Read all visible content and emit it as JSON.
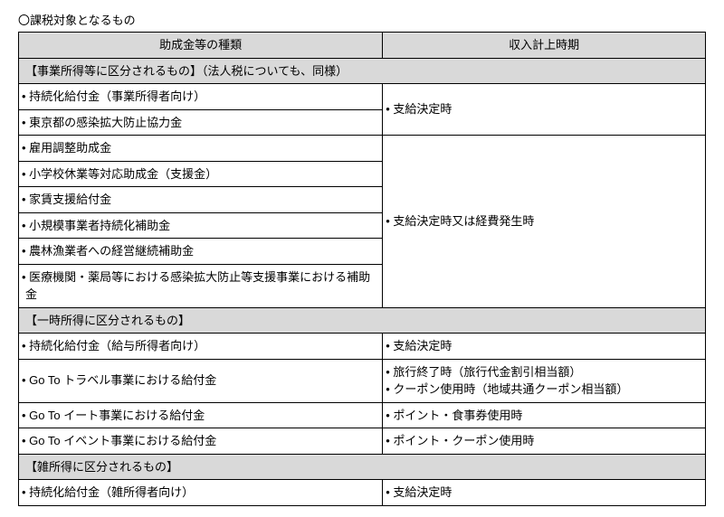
{
  "title": "〇課税対象となるもの",
  "table": {
    "header_left": "助成金等の種類",
    "header_right": "収入計上時期",
    "section1": {
      "label": "【事業所得等に区分されるもの】（法人税についても、同様）",
      "group1": {
        "rows": [
          "• 持続化給付金（事業所得者向け）",
          "• 東京都の感染拡大防止協力金"
        ],
        "timing": "• 支給決定時"
      },
      "group2": {
        "rows": [
          "• 雇用調整助成金",
          "• 小学校休業等対応助成金（支援金）",
          "• 家賃支援給付金",
          "• 小規模事業者持続化補助金",
          "• 農林漁業者への経営継続補助金",
          "• 医療機関・薬局等における感染拡大防止等支援事業における補助金"
        ],
        "timing": "• 支給決定時又は経費発生時"
      }
    },
    "section2": {
      "label": "【一時所得に区分されるもの】",
      "rows": [
        {
          "left": "• 持続化給付金（給与所得者向け）",
          "right": "• 支給決定時"
        },
        {
          "left": "• Go To トラベル事業における給付金",
          "right_line1": "• 旅行終了時（旅行代金割引相当額）",
          "right_line2": "• クーポン使用時（地域共通クーポン相当額）"
        },
        {
          "left": "• Go To イート事業における給付金",
          "right": "• ポイント・食事券使用時"
        },
        {
          "left": "• Go To イベント事業における給付金",
          "right": "• ポイント・クーポン使用時"
        }
      ]
    },
    "section3": {
      "label": "【雑所得に区分されるもの】",
      "rows": [
        {
          "left": "• 持続化給付金（雑所得者向け）",
          "right": "• 支給決定時"
        }
      ]
    }
  }
}
